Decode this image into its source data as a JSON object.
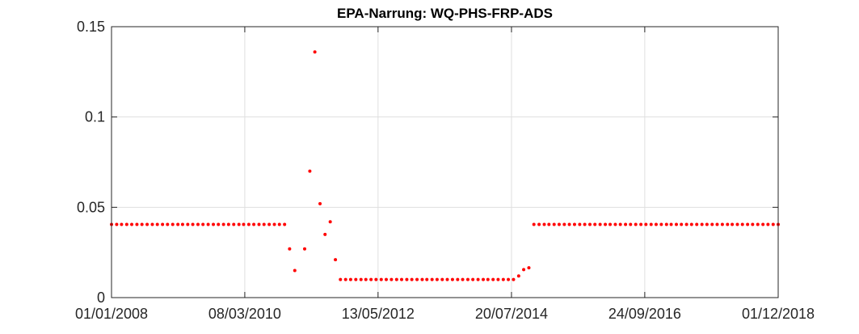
{
  "chart_data": {
    "type": "scatter",
    "title": "EPA-Narrung: WQ-PHS-FRP-ADS",
    "xlabel": "",
    "ylabel": "",
    "x_tick_labels": [
      "01/01/2008",
      "08/03/2010",
      "13/05/2012",
      "20/07/2014",
      "24/09/2016",
      "01/12/2018"
    ],
    "y_tick_labels": [
      "0",
      "0.05",
      "0.1",
      "0.15"
    ],
    "y_ticks": [
      0,
      0.05,
      0.1,
      0.15
    ],
    "xlim": [
      "2008-01-01",
      "2018-12-01"
    ],
    "ylim": [
      0,
      0.15
    ],
    "grid": true,
    "marker_color": "#ff0000",
    "series": [
      {
        "points": [
          [
            "2008-01-01",
            0.0405
          ],
          [
            "2008-02-01",
            0.0405
          ],
          [
            "2008-03-01",
            0.0405
          ],
          [
            "2008-04-01",
            0.0405
          ],
          [
            "2008-05-01",
            0.0405
          ],
          [
            "2008-06-01",
            0.0405
          ],
          [
            "2008-07-01",
            0.0405
          ],
          [
            "2008-08-01",
            0.0405
          ],
          [
            "2008-09-01",
            0.0405
          ],
          [
            "2008-10-01",
            0.0405
          ],
          [
            "2008-11-01",
            0.0405
          ],
          [
            "2008-12-01",
            0.0405
          ],
          [
            "2009-01-01",
            0.0405
          ],
          [
            "2009-02-01",
            0.0405
          ],
          [
            "2009-03-01",
            0.0405
          ],
          [
            "2009-04-01",
            0.0405
          ],
          [
            "2009-05-01",
            0.0405
          ],
          [
            "2009-06-01",
            0.0405
          ],
          [
            "2009-07-01",
            0.0405
          ],
          [
            "2009-08-01",
            0.0405
          ],
          [
            "2009-09-01",
            0.0405
          ],
          [
            "2009-10-01",
            0.0405
          ],
          [
            "2009-11-01",
            0.0405
          ],
          [
            "2009-12-01",
            0.0405
          ],
          [
            "2010-01-01",
            0.0405
          ],
          [
            "2010-02-01",
            0.0405
          ],
          [
            "2010-03-01",
            0.0405
          ],
          [
            "2010-04-01",
            0.0405
          ],
          [
            "2010-05-01",
            0.0405
          ],
          [
            "2010-06-01",
            0.0405
          ],
          [
            "2010-07-01",
            0.0405
          ],
          [
            "2010-08-01",
            0.0405
          ],
          [
            "2010-09-01",
            0.0405
          ],
          [
            "2010-10-01",
            0.0405
          ],
          [
            "2010-11-01",
            0.0405
          ],
          [
            "2010-12-01",
            0.027
          ],
          [
            "2011-01-01",
            0.015
          ],
          [
            "2011-03-01",
            0.027
          ],
          [
            "2011-04-01",
            0.07
          ],
          [
            "2011-05-01",
            0.136
          ],
          [
            "2011-06-01",
            0.052
          ],
          [
            "2011-07-01",
            0.035
          ],
          [
            "2011-08-01",
            0.042
          ],
          [
            "2011-09-01",
            0.021
          ],
          [
            "2011-10-01",
            0.01
          ],
          [
            "2011-11-01",
            0.01
          ],
          [
            "2011-12-01",
            0.01
          ],
          [
            "2012-01-01",
            0.01
          ],
          [
            "2012-02-01",
            0.01
          ],
          [
            "2012-03-01",
            0.01
          ],
          [
            "2012-04-01",
            0.01
          ],
          [
            "2012-05-01",
            0.01
          ],
          [
            "2012-06-01",
            0.01
          ],
          [
            "2012-07-01",
            0.01
          ],
          [
            "2012-08-01",
            0.01
          ],
          [
            "2012-09-01",
            0.01
          ],
          [
            "2012-10-01",
            0.01
          ],
          [
            "2012-11-01",
            0.01
          ],
          [
            "2012-12-01",
            0.01
          ],
          [
            "2013-01-01",
            0.01
          ],
          [
            "2013-02-01",
            0.01
          ],
          [
            "2013-03-01",
            0.01
          ],
          [
            "2013-04-01",
            0.01
          ],
          [
            "2013-05-01",
            0.01
          ],
          [
            "2013-06-01",
            0.01
          ],
          [
            "2013-07-01",
            0.01
          ],
          [
            "2013-08-01",
            0.01
          ],
          [
            "2013-09-01",
            0.01
          ],
          [
            "2013-10-01",
            0.01
          ],
          [
            "2013-11-01",
            0.01
          ],
          [
            "2013-12-01",
            0.01
          ],
          [
            "2014-01-01",
            0.01
          ],
          [
            "2014-02-01",
            0.01
          ],
          [
            "2014-03-01",
            0.01
          ],
          [
            "2014-04-01",
            0.01
          ],
          [
            "2014-05-01",
            0.01
          ],
          [
            "2014-06-01",
            0.01
          ],
          [
            "2014-07-01",
            0.01
          ],
          [
            "2014-08-01",
            0.01
          ],
          [
            "2014-09-01",
            0.012
          ],
          [
            "2014-10-01",
            0.0155
          ],
          [
            "2014-11-01",
            0.0165
          ],
          [
            "2014-12-01",
            0.0405
          ],
          [
            "2015-01-01",
            0.0405
          ],
          [
            "2015-02-01",
            0.0405
          ],
          [
            "2015-03-01",
            0.0405
          ],
          [
            "2015-04-01",
            0.0405
          ],
          [
            "2015-05-01",
            0.0405
          ],
          [
            "2015-06-01",
            0.0405
          ],
          [
            "2015-07-01",
            0.0405
          ],
          [
            "2015-08-01",
            0.0405
          ],
          [
            "2015-09-01",
            0.0405
          ],
          [
            "2015-10-01",
            0.0405
          ],
          [
            "2015-11-01",
            0.0405
          ],
          [
            "2015-12-01",
            0.0405
          ],
          [
            "2016-01-01",
            0.0405
          ],
          [
            "2016-02-01",
            0.0405
          ],
          [
            "2016-03-01",
            0.0405
          ],
          [
            "2016-04-01",
            0.0405
          ],
          [
            "2016-05-01",
            0.0405
          ],
          [
            "2016-06-01",
            0.0405
          ],
          [
            "2016-07-01",
            0.0405
          ],
          [
            "2016-08-01",
            0.0405
          ],
          [
            "2016-09-01",
            0.0405
          ],
          [
            "2016-10-01",
            0.0405
          ],
          [
            "2016-11-01",
            0.0405
          ],
          [
            "2016-12-01",
            0.0405
          ],
          [
            "2017-01-01",
            0.0405
          ],
          [
            "2017-02-01",
            0.0405
          ],
          [
            "2017-03-01",
            0.0405
          ],
          [
            "2017-04-01",
            0.0405
          ],
          [
            "2017-05-01",
            0.0405
          ],
          [
            "2017-06-01",
            0.0405
          ],
          [
            "2017-07-01",
            0.0405
          ],
          [
            "2017-08-01",
            0.0405
          ],
          [
            "2017-09-01",
            0.0405
          ],
          [
            "2017-10-01",
            0.0405
          ],
          [
            "2017-11-01",
            0.0405
          ],
          [
            "2017-12-01",
            0.0405
          ],
          [
            "2018-01-01",
            0.0405
          ],
          [
            "2018-02-01",
            0.0405
          ],
          [
            "2018-03-01",
            0.0405
          ],
          [
            "2018-04-01",
            0.0405
          ],
          [
            "2018-05-01",
            0.0405
          ],
          [
            "2018-06-01",
            0.0405
          ],
          [
            "2018-07-01",
            0.0405
          ],
          [
            "2018-08-01",
            0.0405
          ],
          [
            "2018-09-01",
            0.0405
          ],
          [
            "2018-10-01",
            0.0405
          ],
          [
            "2018-11-01",
            0.0405
          ],
          [
            "2018-12-01",
            0.0405
          ]
        ]
      }
    ]
  }
}
